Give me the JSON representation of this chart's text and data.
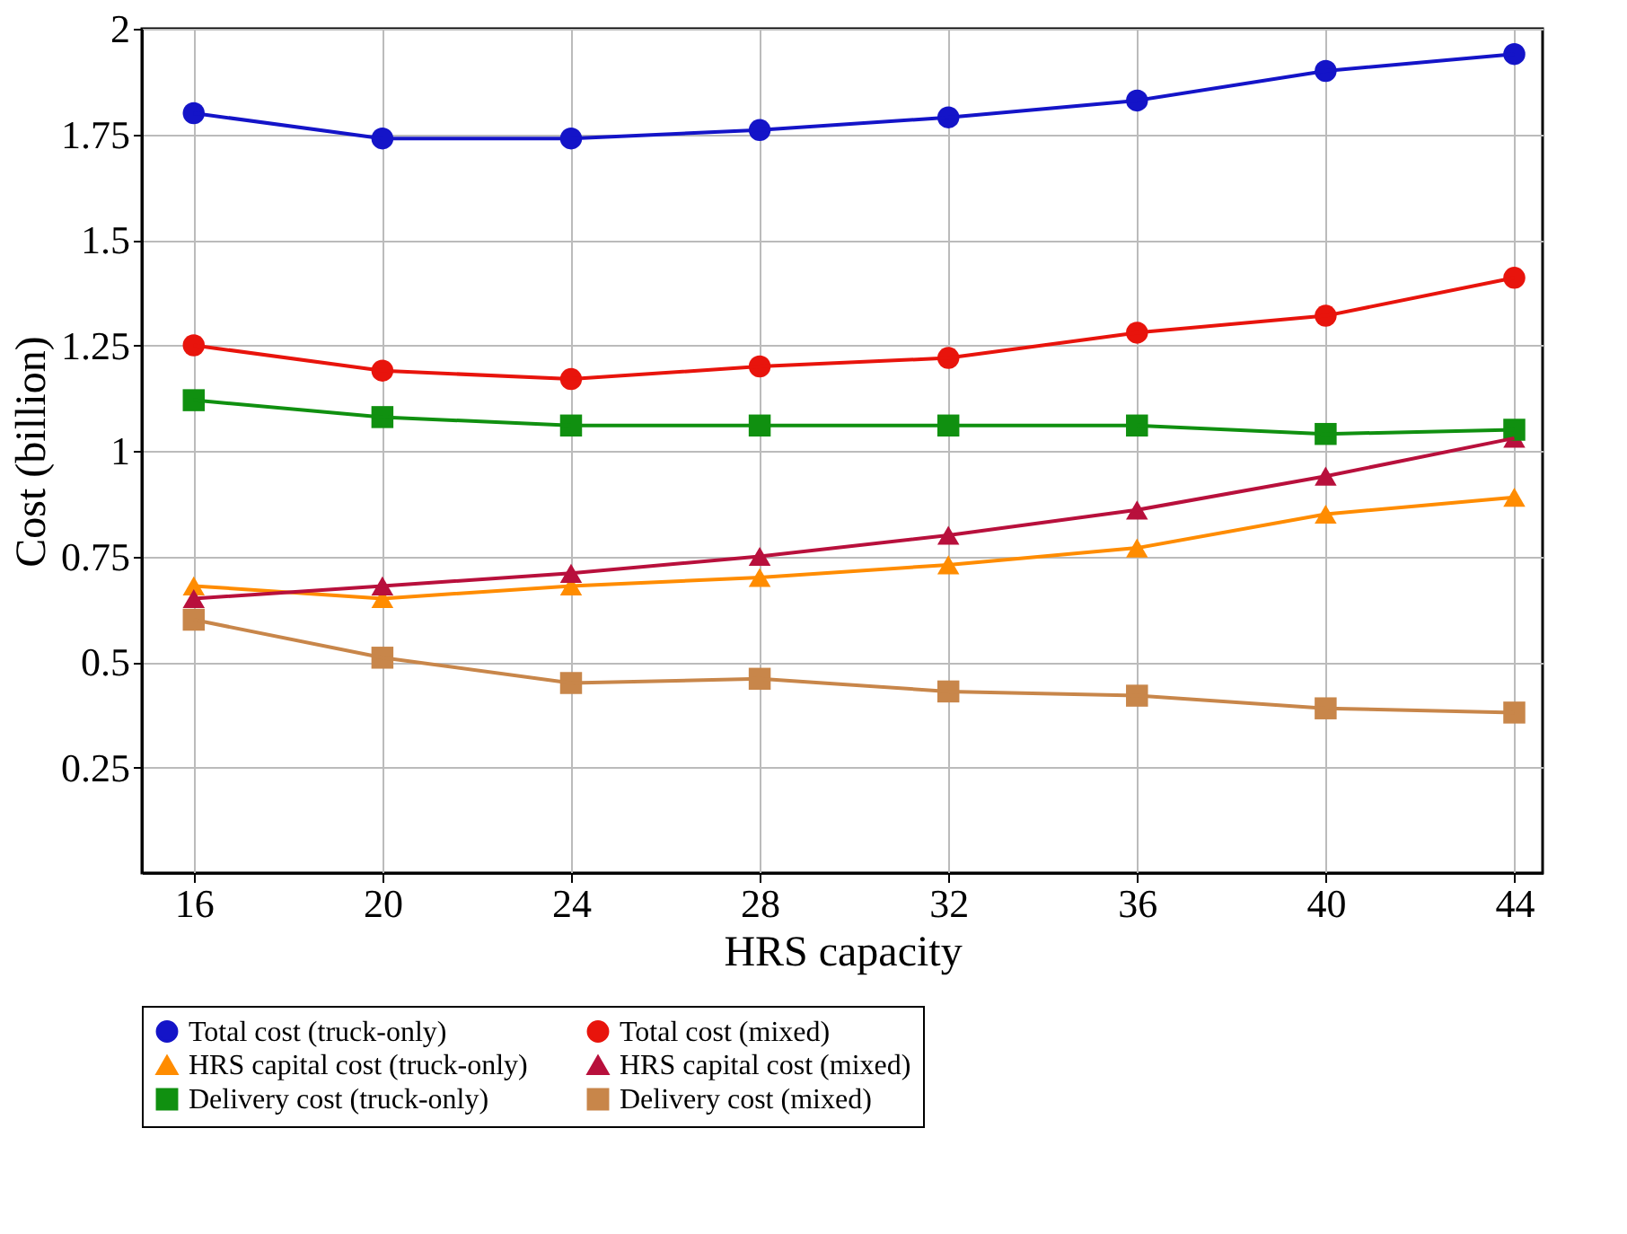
{
  "chart_data": {
    "type": "line",
    "xlabel": "HRS capacity",
    "ylabel": "Cost (billion)",
    "x": [
      16,
      20,
      24,
      28,
      32,
      36,
      40,
      44
    ],
    "xlim": [
      14.9,
      44.6
    ],
    "xticks": [
      16,
      20,
      24,
      28,
      32,
      36,
      40,
      44
    ],
    "ylim": [
      0,
      2
    ],
    "yticks": [
      0.25,
      0.5,
      0.75,
      1,
      1.25,
      1.5,
      1.75,
      2
    ],
    "grid": true,
    "legend": "bottom",
    "series": [
      {
        "name": "Total cost (truck-only)",
        "color": "#1414c8",
        "marker": "circle",
        "values": [
          1.8,
          1.74,
          1.74,
          1.76,
          1.79,
          1.83,
          1.9,
          1.94
        ]
      },
      {
        "name": "Total cost (mixed)",
        "color": "#e8140c",
        "marker": "circle",
        "values": [
          1.25,
          1.19,
          1.17,
          1.2,
          1.22,
          1.28,
          1.32,
          1.41
        ]
      },
      {
        "name": "HRS capital cost (truck-only)",
        "color": "#ff8c00",
        "marker": "triangle",
        "values": [
          0.68,
          0.65,
          0.68,
          0.7,
          0.73,
          0.77,
          0.85,
          0.89
        ]
      },
      {
        "name": "HRS capital cost (mixed)",
        "color": "#b8103c",
        "marker": "triangle",
        "values": [
          0.65,
          0.68,
          0.71,
          0.75,
          0.8,
          0.86,
          0.94,
          1.03
        ]
      },
      {
        "name": "Delivery cost (truck-only)",
        "color": "#109010",
        "marker": "square",
        "values": [
          1.12,
          1.08,
          1.06,
          1.06,
          1.06,
          1.06,
          1.04,
          1.05
        ]
      },
      {
        "name": "Delivery cost (mixed)",
        "color": "#c8864a",
        "marker": "square",
        "values": [
          0.6,
          0.51,
          0.45,
          0.46,
          0.43,
          0.42,
          0.39,
          0.38
        ]
      }
    ]
  }
}
